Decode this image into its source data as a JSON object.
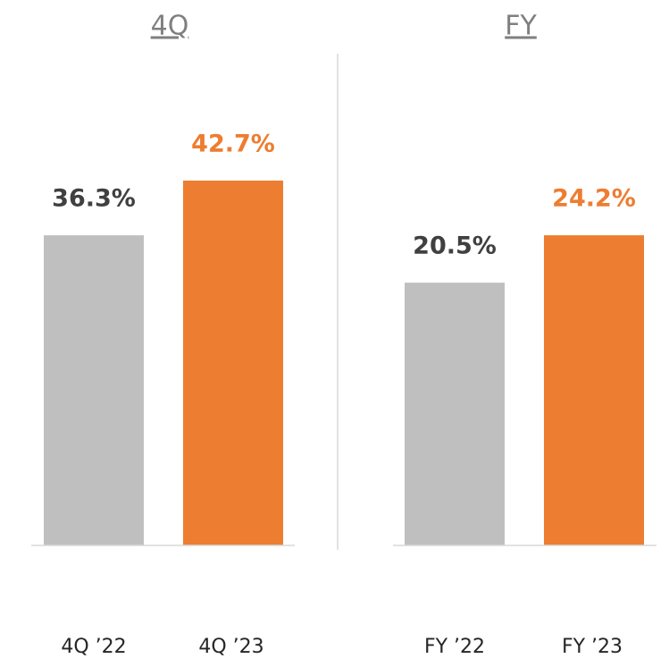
{
  "chart_data": [
    {
      "type": "bar",
      "title": "4Q",
      "categories": [
        "4Q ’22",
        "4Q ’23"
      ],
      "values": [
        36.3,
        42.7
      ],
      "value_labels": [
        "36.3%",
        "42.7%"
      ],
      "colors": [
        "#bfbfbf",
        "#ed7d31"
      ],
      "label_colors": [
        "#404040",
        "#ed7d31"
      ],
      "ylim": [
        0,
        45
      ]
    },
    {
      "type": "bar",
      "title": "FY",
      "categories": [
        "FY ’22",
        "FY ’23"
      ],
      "values": [
        20.5,
        24.2
      ],
      "value_labels": [
        "20.5%",
        "24.2%"
      ],
      "colors": [
        "#bfbfbf",
        "#ed7d31"
      ],
      "label_colors": [
        "#404040",
        "#ed7d31"
      ],
      "ylim": [
        0,
        30
      ]
    }
  ]
}
